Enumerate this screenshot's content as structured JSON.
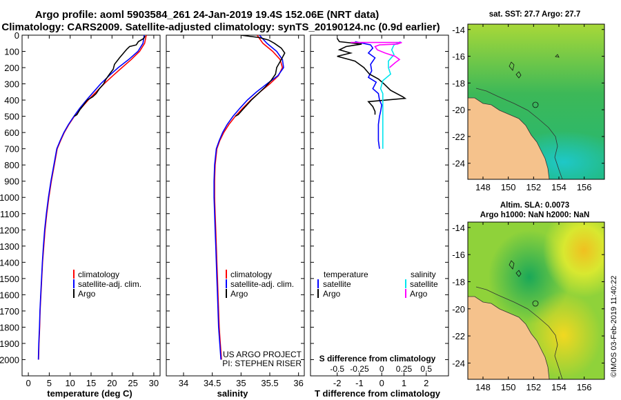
{
  "title": {
    "line1": "Argo profile: aoml 5903584_261 24-Jan-2019 19.4S 152.06E (NRT data)",
    "line2": "Climatology: CARS2009. Satellite-adjusted climatology: synTS_20190124.nc (0.9d earlier)"
  },
  "depth_ticks": [
    "0",
    "100",
    "200",
    "300",
    "400",
    "500",
    "600",
    "700",
    "800",
    "900",
    "1000",
    "1100",
    "1200",
    "1300",
    "1400",
    "1500",
    "1600",
    "1700",
    "1800",
    "1900",
    "2000"
  ],
  "chart_data": [
    {
      "type": "line",
      "name": "temperature",
      "xlabel": "temperature (deg C)",
      "ylabel": "depth",
      "xlim": [
        -1.5,
        31.5
      ],
      "ylim": [
        2100,
        0
      ],
      "xticks": [
        "0",
        "5",
        "10",
        "15",
        "20",
        "25",
        "30"
      ],
      "series": [
        {
          "name": "climatology",
          "color": "#ff0000",
          "points": [
            [
              28.2,
              0
            ],
            [
              27.8,
              50
            ],
            [
              26.6,
              100
            ],
            [
              24.6,
              150
            ],
            [
              22.4,
              200
            ],
            [
              20.2,
              250
            ],
            [
              18.1,
              300
            ],
            [
              16.2,
              350
            ],
            [
              14.3,
              400
            ],
            [
              12.6,
              450
            ],
            [
              11.0,
              500
            ],
            [
              9.7,
              550
            ],
            [
              8.6,
              600
            ],
            [
              7.7,
              650
            ],
            [
              6.9,
              700
            ],
            [
              6.2,
              800
            ],
            [
              5.5,
              900
            ],
            [
              4.9,
              1000
            ],
            [
              4.4,
              1100
            ],
            [
              4.0,
              1200
            ],
            [
              3.7,
              1300
            ],
            [
              3.4,
              1400
            ],
            [
              3.2,
              1500
            ],
            [
              3.0,
              1600
            ],
            [
              2.8,
              1700
            ],
            [
              2.7,
              1800
            ],
            [
              2.55,
              1900
            ],
            [
              2.45,
              2000
            ]
          ]
        },
        {
          "name": "satellite-adj. clim.",
          "color": "#0000ff",
          "points": [
            [
              27.7,
              0
            ],
            [
              27.4,
              50
            ],
            [
              26.2,
              100
            ],
            [
              24.0,
              150
            ],
            [
              21.5,
              200
            ],
            [
              19.3,
              250
            ],
            [
              17.3,
              300
            ],
            [
              15.6,
              350
            ],
            [
              13.9,
              400
            ],
            [
              12.3,
              450
            ],
            [
              10.9,
              500
            ],
            [
              9.6,
              550
            ],
            [
              8.5,
              600
            ],
            [
              7.6,
              650
            ],
            [
              6.8,
              700
            ],
            [
              6.1,
              800
            ],
            [
              5.4,
              900
            ],
            [
              4.8,
              1000
            ],
            [
              4.3,
              1100
            ],
            [
              3.9,
              1200
            ],
            [
              3.6,
              1300
            ],
            [
              3.35,
              1400
            ],
            [
              3.15,
              1500
            ],
            [
              2.95,
              1600
            ],
            [
              2.78,
              1700
            ],
            [
              2.65,
              1800
            ],
            [
              2.5,
              1900
            ],
            [
              2.4,
              2000
            ]
          ]
        },
        {
          "name": "Argo",
          "color": "#000000",
          "points": [
            [
              27.9,
              5
            ],
            [
              27.6,
              20
            ],
            [
              26.3,
              40
            ],
            [
              25.8,
              60
            ],
            [
              24.2,
              70
            ],
            [
              23.6,
              85
            ],
            [
              23.1,
              100
            ],
            [
              21.8,
              140
            ],
            [
              20.6,
              180
            ],
            [
              20.3,
              210
            ],
            [
              19.4,
              240
            ],
            [
              18.6,
              270
            ],
            [
              18.0,
              300
            ],
            [
              17.0,
              330
            ],
            [
              16.2,
              360
            ],
            [
              15.4,
              380
            ],
            [
              14.1,
              400
            ],
            [
              13.2,
              430
            ],
            [
              12.3,
              460
            ],
            [
              11.6,
              490
            ],
            [
              11.0,
              500
            ]
          ]
        }
      ],
      "legend": {
        "position": "bottom-right",
        "entries": [
          "climatology",
          "satellite-adj. clim.",
          "Argo"
        ]
      }
    },
    {
      "type": "line",
      "name": "salinity",
      "xlabel": "salinity",
      "ylabel": "depth",
      "xlim": [
        33.7,
        36.1
      ],
      "ylim": [
        2100,
        0
      ],
      "xticks": [
        "34",
        "34.5",
        "35",
        "35.5",
        "36"
      ],
      "series": [
        {
          "name": "climatology",
          "color": "#ff0000",
          "points": [
            [
              35.28,
              0
            ],
            [
              35.38,
              50
            ],
            [
              35.55,
              100
            ],
            [
              35.68,
              150
            ],
            [
              35.72,
              200
            ],
            [
              35.65,
              250
            ],
            [
              35.5,
              300
            ],
            [
              35.33,
              350
            ],
            [
              35.17,
              400
            ],
            [
              35.03,
              450
            ],
            [
              34.9,
              500
            ],
            [
              34.79,
              550
            ],
            [
              34.7,
              600
            ],
            [
              34.63,
              650
            ],
            [
              34.58,
              700
            ],
            [
              34.55,
              800
            ],
            [
              34.54,
              900
            ],
            [
              34.54,
              1000
            ],
            [
              34.55,
              1100
            ],
            [
              34.56,
              1200
            ],
            [
              34.57,
              1300
            ],
            [
              34.58,
              1400
            ],
            [
              34.59,
              1500
            ],
            [
              34.6,
              1600
            ],
            [
              34.61,
              1700
            ],
            [
              34.62,
              1800
            ],
            [
              34.64,
              1900
            ],
            [
              34.66,
              2000
            ]
          ]
        },
        {
          "name": "satellite-adj. clim.",
          "color": "#0000ff",
          "points": [
            [
              35.32,
              0
            ],
            [
              35.45,
              50
            ],
            [
              35.62,
              100
            ],
            [
              35.72,
              150
            ],
            [
              35.74,
              200
            ],
            [
              35.64,
              250
            ],
            [
              35.45,
              300
            ],
            [
              35.27,
              350
            ],
            [
              35.11,
              400
            ],
            [
              34.98,
              450
            ],
            [
              34.86,
              500
            ],
            [
              34.76,
              550
            ],
            [
              34.68,
              600
            ],
            [
              34.62,
              650
            ],
            [
              34.57,
              700
            ],
            [
              34.54,
              800
            ],
            [
              34.53,
              900
            ],
            [
              34.53,
              1000
            ],
            [
              34.54,
              1100
            ],
            [
              34.55,
              1200
            ],
            [
              34.56,
              1300
            ],
            [
              34.57,
              1400
            ],
            [
              34.58,
              1500
            ],
            [
              34.59,
              1600
            ],
            [
              34.6,
              1700
            ],
            [
              34.61,
              1800
            ],
            [
              34.63,
              1900
            ],
            [
              34.65,
              2000
            ]
          ]
        },
        {
          "name": "Argo",
          "color": "#000000",
          "points": [
            [
              35.0,
              0
            ],
            [
              35.32,
              15
            ],
            [
              35.48,
              30
            ],
            [
              35.58,
              50
            ],
            [
              35.7,
              80
            ],
            [
              35.76,
              110
            ],
            [
              35.7,
              150
            ],
            [
              35.62,
              200
            ],
            [
              35.6,
              240
            ],
            [
              35.52,
              280
            ],
            [
              35.42,
              320
            ],
            [
              35.3,
              360
            ],
            [
              35.18,
              400
            ],
            [
              35.05,
              450
            ],
            [
              34.95,
              490
            ],
            [
              34.9,
              500
            ]
          ]
        }
      ],
      "legend": {
        "position": "bottom-right",
        "entries": [
          "climatology",
          "satellite-adj. clim.",
          "Argo"
        ]
      }
    },
    {
      "type": "line",
      "name": "difference from climatology",
      "xlabel": "T difference from climatology",
      "xlabel_top": "S difference from climatology",
      "ylabel": "depth",
      "xlim": [
        -3.2,
        3.0
      ],
      "ylim": [
        2100,
        0
      ],
      "xticks": [
        "-2",
        "-1",
        "0",
        "1",
        "2"
      ],
      "s_ticks": [
        "-0.5",
        "-0.25",
        "0",
        "0.25",
        "0.5"
      ],
      "series": [
        {
          "name": "temperature satellite",
          "color": "#0000ff",
          "points": [
            [
              -1.2,
              40
            ],
            [
              -0.5,
              60
            ],
            [
              -0.4,
              80
            ],
            [
              -0.6,
              110
            ],
            [
              -0.3,
              140
            ],
            [
              -0.5,
              180
            ],
            [
              -0.45,
              220
            ],
            [
              -0.6,
              260
            ],
            [
              -0.25,
              290
            ],
            [
              -0.4,
              330
            ],
            [
              -0.15,
              360
            ],
            [
              -0.1,
              400
            ],
            [
              0,
              430
            ],
            [
              -0.05,
              470
            ],
            [
              -0.1,
              500
            ],
            [
              -0.15,
              550
            ],
            [
              -0.15,
              600
            ],
            [
              -0.15,
              650
            ],
            [
              -0.1,
              700
            ]
          ]
        },
        {
          "name": "temperature Argo",
          "color": "#000000",
          "points": [
            [
              -2.0,
              20
            ],
            [
              -1.9,
              40
            ],
            [
              -0.9,
              55
            ],
            [
              -1.6,
              70
            ],
            [
              -1.9,
              90
            ],
            [
              -1.4,
              110
            ],
            [
              -2.0,
              130
            ],
            [
              -1.2,
              160
            ],
            [
              -0.8,
              200
            ],
            [
              -0.55,
              240
            ],
            [
              -0.15,
              270
            ],
            [
              0.1,
              300
            ],
            [
              0.4,
              340
            ],
            [
              0.95,
              380
            ],
            [
              1.05,
              390
            ],
            [
              0.2,
              400
            ],
            [
              -0.6,
              410
            ],
            [
              -0.4,
              440
            ],
            [
              -0.3,
              470
            ],
            [
              -0.3,
              490
            ]
          ]
        },
        {
          "name": "salinity satellite",
          "color": "#00e5ee",
          "points": [
            [
              0.85,
              40
            ],
            [
              0.55,
              60
            ],
            [
              0.45,
              90
            ],
            [
              0.55,
              120
            ],
            [
              0.3,
              160
            ],
            [
              0.3,
              200
            ],
            [
              0.4,
              240
            ],
            [
              0.05,
              280
            ],
            [
              -0.05,
              330
            ],
            [
              0.05,
              360
            ],
            [
              0.05,
              400
            ],
            [
              0.05,
              450
            ],
            [
              0.05,
              500
            ],
            [
              0.05,
              550
            ],
            [
              0.05,
              600
            ],
            [
              0.05,
              650
            ],
            [
              0.05,
              700
            ]
          ]
        },
        {
          "name": "salinity Argo",
          "color": "#ff00ff",
          "points": [
            [
              -1.4,
              45
            ],
            [
              0.9,
              45
            ],
            [
              0.7,
              55
            ],
            [
              -0.1,
              60
            ],
            [
              -0.3,
              70
            ],
            [
              -0.2,
              90
            ],
            [
              0.15,
              110
            ],
            [
              0.6,
              130
            ],
            [
              0.8,
              150
            ],
            [
              0.6,
              170
            ],
            [
              0.35,
              200
            ]
          ]
        }
      ],
      "legend": {
        "position": "bottom",
        "temperature_title": "temperature",
        "salinity_title": "salinity",
        "entries": [
          "satellite",
          "Argo"
        ]
      }
    }
  ],
  "legend_labels": {
    "climatology": "climatology",
    "satellite_adj": "satellite-adj. clim.",
    "argo": "Argo",
    "temperature": "temperature",
    "salinity": "salinity",
    "satellite": "satellite"
  },
  "credits": {
    "line1": "US ARGO PROJECT",
    "line2": "PI: STEPHEN RISER"
  },
  "maps": {
    "sst_title": "sat. SST: 27.7 Argo: 27.7",
    "sla_title1": "Altim. SLA: 0.0073",
    "sla_title2": "Argo h1000: NaN h2000: NaN",
    "lat_ticks": [
      "-14",
      "-16",
      "-18",
      "-20",
      "-22",
      "-24"
    ],
    "lon_ticks": [
      "148",
      "150",
      "152",
      "154",
      "156"
    ],
    "colors": {
      "land": "#f5c28c",
      "ocean_green": "#2bb36a",
      "ocean_cyan": "#20c8c0",
      "sla_yellow": "#d8e830"
    }
  },
  "watermark": "©IMOS 03-Feb-2019 11:40:22"
}
